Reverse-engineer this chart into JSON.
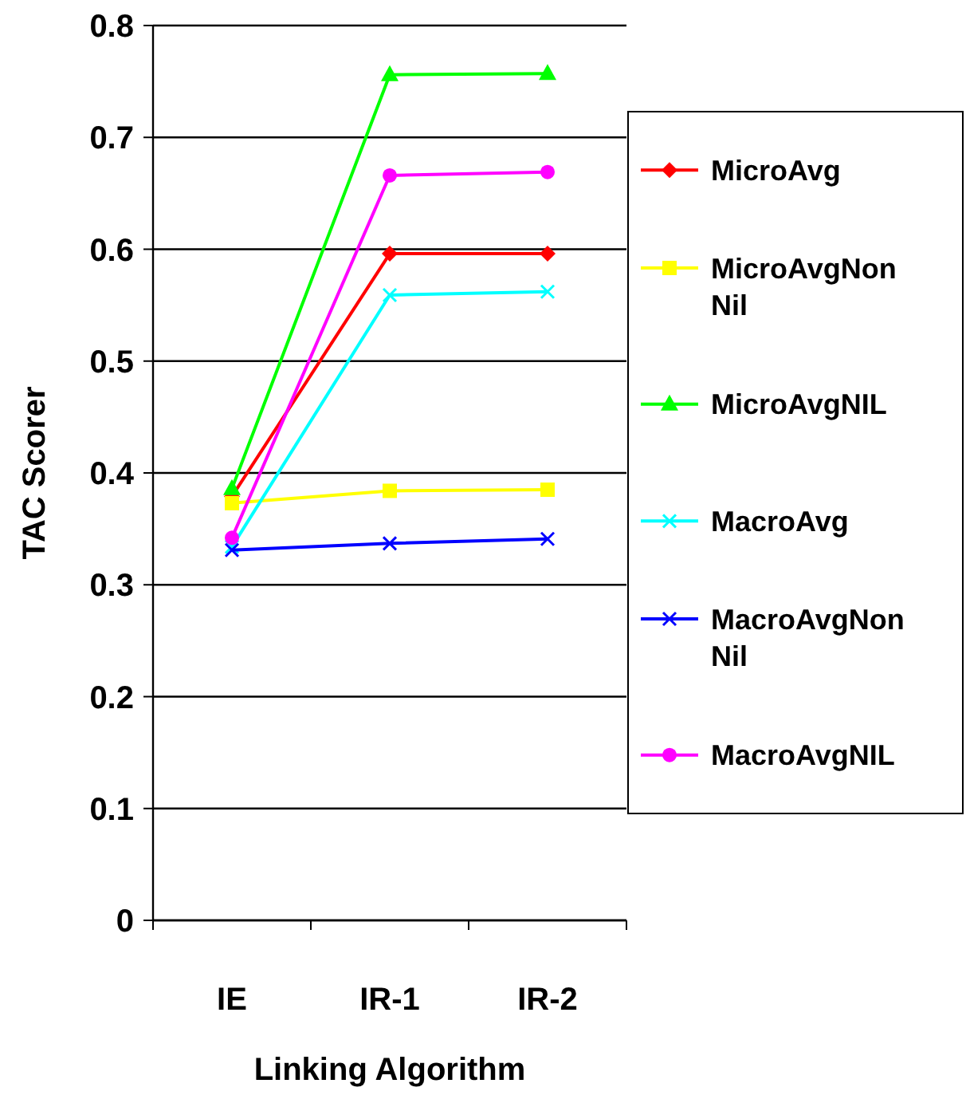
{
  "chart_data": {
    "type": "line",
    "xlabel": "Linking Algorithm",
    "ylabel": "TAC Scorer",
    "categories": [
      "IE",
      "IR-1",
      "IR-2"
    ],
    "ylim": [
      0,
      0.8
    ],
    "yticks": [
      0,
      0.1,
      0.2,
      0.3,
      0.4,
      0.5,
      0.6,
      0.7,
      0.8
    ],
    "grid": "y",
    "legend": "right",
    "series": [
      {
        "name": "MicroAvg",
        "color": "#ff0000",
        "marker": "diamond",
        "values": [
          0.379,
          0.596,
          0.596
        ]
      },
      {
        "name": "MicroAvgNonNil",
        "color": "#ffff00",
        "marker": "square",
        "values": [
          0.373,
          0.384,
          0.385
        ]
      },
      {
        "name": "MicroAvgNIL",
        "color": "#00ff00",
        "marker": "triangle",
        "values": [
          0.386,
          0.756,
          0.757
        ]
      },
      {
        "name": "MacroAvg",
        "color": "#00ffff",
        "marker": "cross",
        "values": [
          0.334,
          0.559,
          0.562
        ]
      },
      {
        "name": "MacroAvgNonNil",
        "color": "#0000ff",
        "marker": "cross",
        "values": [
          0.331,
          0.337,
          0.341
        ]
      },
      {
        "name": "MacroAvgNIL",
        "color": "#ff00ff",
        "marker": "circle",
        "values": [
          0.342,
          0.666,
          0.669
        ]
      }
    ]
  }
}
